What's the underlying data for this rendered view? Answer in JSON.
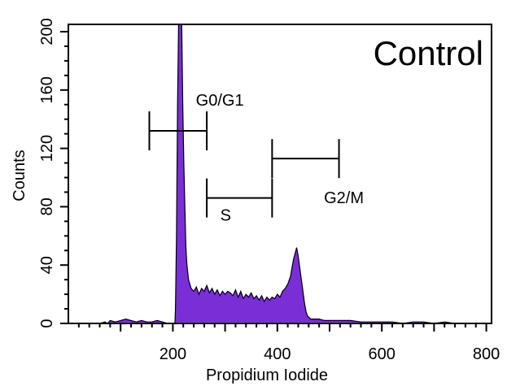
{
  "chart_data": {
    "type": "area",
    "panel_label": "Control",
    "xlabel": "Propidium Iodide",
    "ylabel": "Counts",
    "xlim": [
      0,
      810
    ],
    "ylim": [
      0,
      205
    ],
    "xticks": [
      200,
      400,
      600,
      800
    ],
    "yticks": [
      0,
      40,
      80,
      120,
      160,
      200
    ],
    "fill_color": "#7a2fd6",
    "series": [
      {
        "x": [
          0,
          60,
          70,
          75,
          80,
          90,
          100,
          110,
          120,
          130,
          140,
          150,
          160,
          170,
          180,
          190,
          200,
          204,
          205,
          207,
          209,
          211,
          213,
          215,
          217,
          219,
          221,
          223,
          225,
          227,
          230,
          235,
          240,
          245,
          250,
          255,
          260,
          265,
          270,
          275,
          280,
          285,
          290,
          295,
          300,
          305,
          310,
          315,
          320,
          325,
          330,
          335,
          340,
          345,
          350,
          355,
          360,
          365,
          370,
          375,
          380,
          385,
          390,
          395,
          400,
          405,
          410,
          415,
          420,
          425,
          428,
          431,
          434,
          437,
          440,
          443,
          446,
          449,
          452,
          455,
          458,
          461,
          464,
          470,
          480,
          490,
          500,
          520,
          540,
          560,
          580,
          600,
          620,
          640,
          660,
          680,
          700,
          720,
          740,
          760,
          780,
          810
        ],
        "y": [
          0,
          0,
          1,
          0,
          2,
          1,
          2,
          3,
          2,
          1,
          2,
          1,
          1,
          2,
          1,
          0,
          0,
          0,
          10,
          60,
          150,
          205,
          205,
          205,
          205,
          150,
          110,
          80,
          52,
          40,
          30,
          24,
          22,
          25,
          20,
          24,
          22,
          26,
          21,
          24,
          20,
          23,
          19,
          22,
          20,
          22,
          21,
          19,
          23,
          18,
          22,
          17,
          20,
          18,
          21,
          17,
          19,
          16,
          19,
          15,
          18,
          16,
          18,
          17,
          20,
          18,
          22,
          24,
          27,
          32,
          38,
          44,
          48,
          52,
          46,
          38,
          30,
          22,
          14,
          8,
          5,
          4,
          3,
          3,
          3,
          2,
          2,
          2,
          2,
          1,
          1,
          1,
          1,
          0,
          1,
          1,
          0,
          1,
          0,
          0,
          0,
          0
        ]
      }
    ],
    "gates": [
      {
        "label": "G0/G1",
        "x_start": 155,
        "x_end": 265,
        "y": 132
      },
      {
        "label": "S",
        "x_start": 265,
        "x_end": 390,
        "y": 86
      },
      {
        "label": "G2/M",
        "x_start": 390,
        "x_end": 518,
        "y": 113
      }
    ]
  }
}
